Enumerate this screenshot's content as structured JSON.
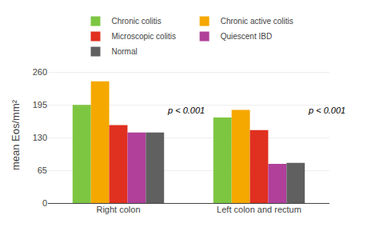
{
  "chart_data": {
    "type": "bar",
    "categories": [
      "Right colon",
      "Left colon and rectum"
    ],
    "series": [
      {
        "name": "Chronic colitis",
        "color": "#7dc642",
        "values": [
          195,
          170
        ]
      },
      {
        "name": "Chronic active colitis",
        "color": "#f5a800",
        "values": [
          242,
          185
        ]
      },
      {
        "name": "Microscopic colitis",
        "color": "#e03020",
        "values": [
          155,
          145
        ]
      },
      {
        "name": "Quiescent IBD",
        "color": "#b0409a",
        "values": [
          140,
          78
        ]
      },
      {
        "name": "Normal",
        "color": "#606060",
        "values": [
          140,
          80
        ]
      }
    ],
    "ylabel": "mean Eos/mm²",
    "ylim": [
      0,
      270
    ],
    "yticks": [
      0,
      65,
      130,
      195,
      260
    ],
    "annotations": [
      {
        "text": "p < 0.001",
        "category": "Right colon",
        "y": 172
      },
      {
        "text": "p < 0.001",
        "category": "Left colon and rectum",
        "y": 172
      }
    ],
    "grid": true,
    "legend": "top"
  }
}
